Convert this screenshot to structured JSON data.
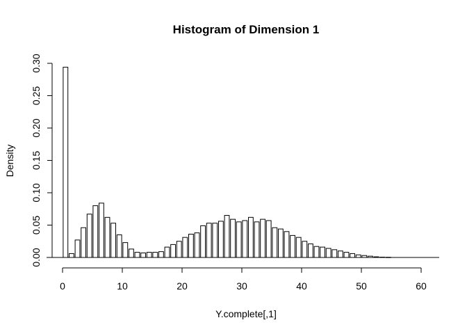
{
  "chart_data": {
    "type": "bar",
    "title": "Histogram of Dimension 1",
    "xlabel": "Y.complete[,1]",
    "ylabel": "Density",
    "xlim": [
      0,
      62
    ],
    "ylim": [
      0,
      0.3
    ],
    "x_ticks": [
      0,
      10,
      20,
      30,
      40,
      50,
      60
    ],
    "y_ticks": [
      0.0,
      0.05,
      0.1,
      0.15,
      0.2,
      0.25,
      0.3
    ],
    "y_tick_labels": [
      "0.00",
      "0.05",
      "0.10",
      "0.15",
      "0.20",
      "0.25",
      "0.30"
    ],
    "bin_width": 1,
    "bins_start": 0,
    "grid": false,
    "bar_fill": "#ffffff",
    "bar_stroke": "#000000",
    "values": [
      0.294,
      0.006,
      0.027,
      0.046,
      0.067,
      0.08,
      0.084,
      0.062,
      0.053,
      0.035,
      0.023,
      0.013,
      0.008,
      0.007,
      0.008,
      0.008,
      0.009,
      0.016,
      0.02,
      0.025,
      0.031,
      0.036,
      0.038,
      0.049,
      0.053,
      0.053,
      0.056,
      0.065,
      0.059,
      0.055,
      0.057,
      0.062,
      0.055,
      0.059,
      0.057,
      0.046,
      0.044,
      0.04,
      0.034,
      0.031,
      0.025,
      0.021,
      0.017,
      0.016,
      0.014,
      0.012,
      0.01,
      0.008,
      0.006,
      0.004,
      0.003,
      0.002,
      0.001,
      0.0005,
      0.0003
    ]
  }
}
